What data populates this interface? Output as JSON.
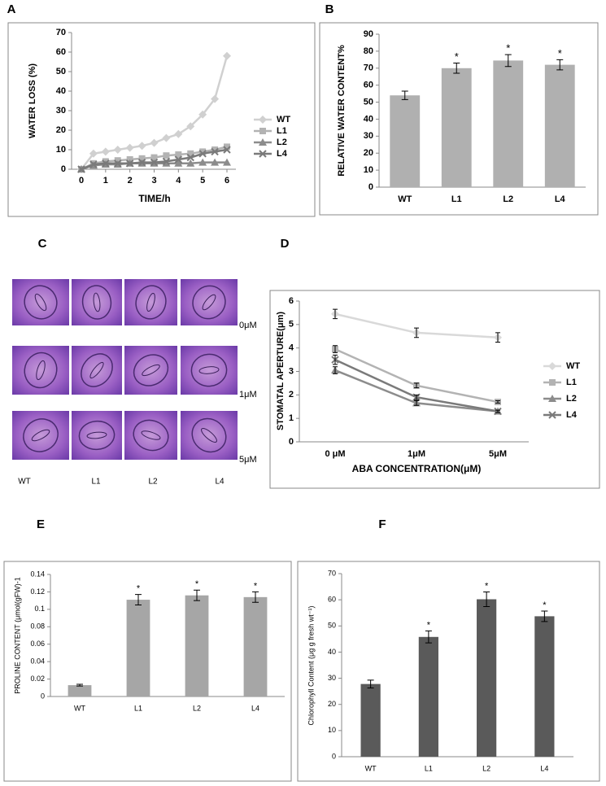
{
  "chart_data": [
    {
      "type": "line",
      "panel": "A",
      "xlabel": "TIME/h",
      "ylabel": "WATER LOSS (%)",
      "x": [
        0,
        0.5,
        1,
        1.5,
        2,
        2.5,
        3,
        3.5,
        4,
        4.5,
        5,
        5.5,
        6
      ],
      "xlim": [
        0,
        6
      ],
      "xticks": [
        0,
        1,
        2,
        3,
        4,
        5,
        6
      ],
      "ylim": [
        0,
        70
      ],
      "yticks": [
        0,
        10,
        20,
        30,
        40,
        50,
        60,
        70
      ],
      "series": [
        {
          "name": "WT",
          "color": "#d0d0d0",
          "marker": "diamond",
          "values": [
            0,
            8,
            9,
            10,
            11,
            12,
            13.5,
            16,
            18,
            22,
            28,
            36,
            58
          ]
        },
        {
          "name": "L1",
          "color": "#b3b3b3",
          "marker": "square",
          "values": [
            0,
            3,
            4,
            4.5,
            5,
            5.5,
            6,
            7,
            7.5,
            8,
            9,
            10,
            11.5
          ]
        },
        {
          "name": "L2",
          "color": "#8c8c8c",
          "marker": "triangle",
          "values": [
            0,
            2,
            2.5,
            2.5,
            3,
            3,
            3,
            3,
            3,
            3,
            3.5,
            3.5,
            3.5
          ]
        },
        {
          "name": "L4",
          "color": "#7a7a7a",
          "marker": "cross",
          "values": [
            0,
            2.5,
            3,
            3,
            3,
            3.5,
            3.5,
            4,
            5,
            6,
            8,
            9,
            10
          ]
        }
      ]
    },
    {
      "type": "bar",
      "panel": "B",
      "ylabel": "RELATIVE WATER CONTENT%",
      "color": "#b0b0b0",
      "categories": [
        "WT",
        "L1",
        "L2",
        "L4"
      ],
      "values": [
        54,
        70,
        74.5,
        72
      ],
      "errors": [
        2.5,
        3,
        3.5,
        3
      ],
      "significance": [
        null,
        "*",
        "*",
        "*"
      ],
      "ylim": [
        0,
        90
      ],
      "yticks": [
        0,
        10,
        20,
        30,
        40,
        50,
        60,
        70,
        80,
        90
      ]
    },
    {
      "type": "image-grid",
      "panel": "C",
      "rows": [
        "0μM",
        "1μM",
        "5μM"
      ],
      "columns": [
        "WT",
        "L1",
        "L2",
        "L4"
      ]
    },
    {
      "type": "line",
      "panel": "D",
      "xlabel": "ABA CONCENTRATION(μM)",
      "ylabel": "STOMATAL APERTURE(μm)",
      "categories": [
        "0 μM",
        "1μM",
        "5μM"
      ],
      "ylim": [
        0,
        6
      ],
      "yticks": [
        0,
        1,
        2,
        3,
        4,
        5,
        6
      ],
      "series": [
        {
          "name": "WT",
          "color": "#d9d9d9",
          "marker": "diamond",
          "values": [
            5.45,
            4.65,
            4.45
          ],
          "errors": [
            0.2,
            0.2,
            0.2
          ]
        },
        {
          "name": "L1",
          "color": "#b3b3b3",
          "marker": "square",
          "values": [
            3.95,
            2.4,
            1.7
          ],
          "errors": [
            0.15,
            0.1,
            0.05
          ]
        },
        {
          "name": "L2",
          "color": "#8c8c8c",
          "marker": "triangle",
          "values": [
            3.05,
            1.65,
            1.3
          ],
          "errors": [
            0.15,
            0.1,
            0.05
          ]
        },
        {
          "name": "L4",
          "color": "#7a7a7a",
          "marker": "cross",
          "values": [
            3.5,
            1.9,
            1.3
          ],
          "errors": [
            0.2,
            0.1,
            0.05
          ]
        }
      ]
    },
    {
      "type": "bar",
      "panel": "E",
      "ylabel": "PROLINE CONTENT (μmol(gFW)-1",
      "color": "#a6a6a6",
      "categories": [
        "WT",
        "L1",
        "L2",
        "L4"
      ],
      "values": [
        0.013,
        0.111,
        0.116,
        0.114
      ],
      "errors": [
        0.001,
        0.006,
        0.006,
        0.006
      ],
      "significance": [
        null,
        "*",
        "*",
        "*"
      ],
      "ylim": [
        0,
        0.14
      ],
      "yticks": [
        0,
        0.02,
        0.04,
        0.06,
        0.08,
        0.1,
        0.12,
        0.14
      ]
    },
    {
      "type": "bar",
      "panel": "F",
      "ylabel": "Chlorophyll Content (μg g fresh wt⁻¹)",
      "color": "#5a5a5a",
      "categories": [
        "WT",
        "L1",
        "L2",
        "L4"
      ],
      "values": [
        27.8,
        45.8,
        60.2,
        53.7
      ],
      "errors": [
        1.5,
        2.3,
        2.8,
        2
      ],
      "significance": [
        null,
        "*",
        "*",
        "*"
      ],
      "ylim": [
        0,
        70
      ],
      "yticks": [
        0,
        10,
        20,
        30,
        40,
        50,
        60,
        70
      ]
    }
  ]
}
